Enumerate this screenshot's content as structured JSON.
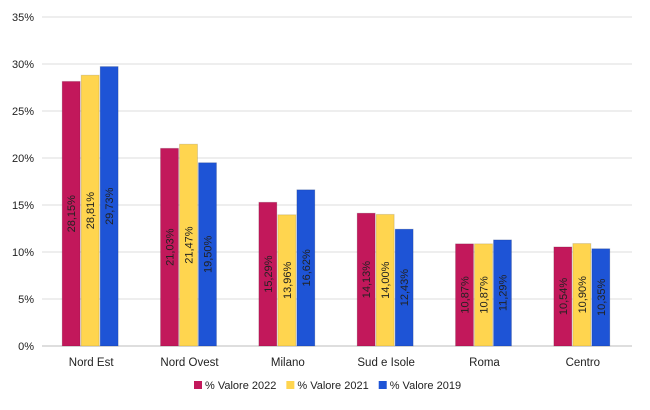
{
  "chart_data": {
    "type": "bar",
    "categories": [
      "Nord Est",
      "Nord Ovest",
      "Milano",
      "Sud e Isole",
      "Roma",
      "Centro"
    ],
    "series": [
      {
        "name": "% Valore 2022",
        "values": [
          28.15,
          21.03,
          15.29,
          14.13,
          10.87,
          10.54
        ],
        "labels": [
          "28,15%",
          "21,03%",
          "15,29%",
          "14,13%",
          "10,87%",
          "10,54%"
        ],
        "color": "#c2185b"
      },
      {
        "name": "% Valore 2021",
        "values": [
          28.81,
          21.47,
          13.96,
          14.0,
          10.87,
          10.9
        ],
        "labels": [
          "28,81%",
          "21,47%",
          "13,96%",
          "14,00%",
          "10,87%",
          "10,90%"
        ],
        "color": "#ffd54f"
      },
      {
        "name": "% Valore 2019",
        "values": [
          29.73,
          19.5,
          16.62,
          12.43,
          11.29,
          10.35
        ],
        "labels": [
          "29,73%",
          "19,50%",
          "16,62%",
          "12,43%",
          "11,29%",
          "10,35%"
        ],
        "color": "#1e54d6"
      }
    ],
    "ylim": [
      0,
      35
    ],
    "yticks": [
      "0%",
      "5%",
      "10%",
      "15%",
      "20%",
      "25%",
      "30%",
      "35%"
    ],
    "grid": true,
    "legend_position": "bottom"
  }
}
